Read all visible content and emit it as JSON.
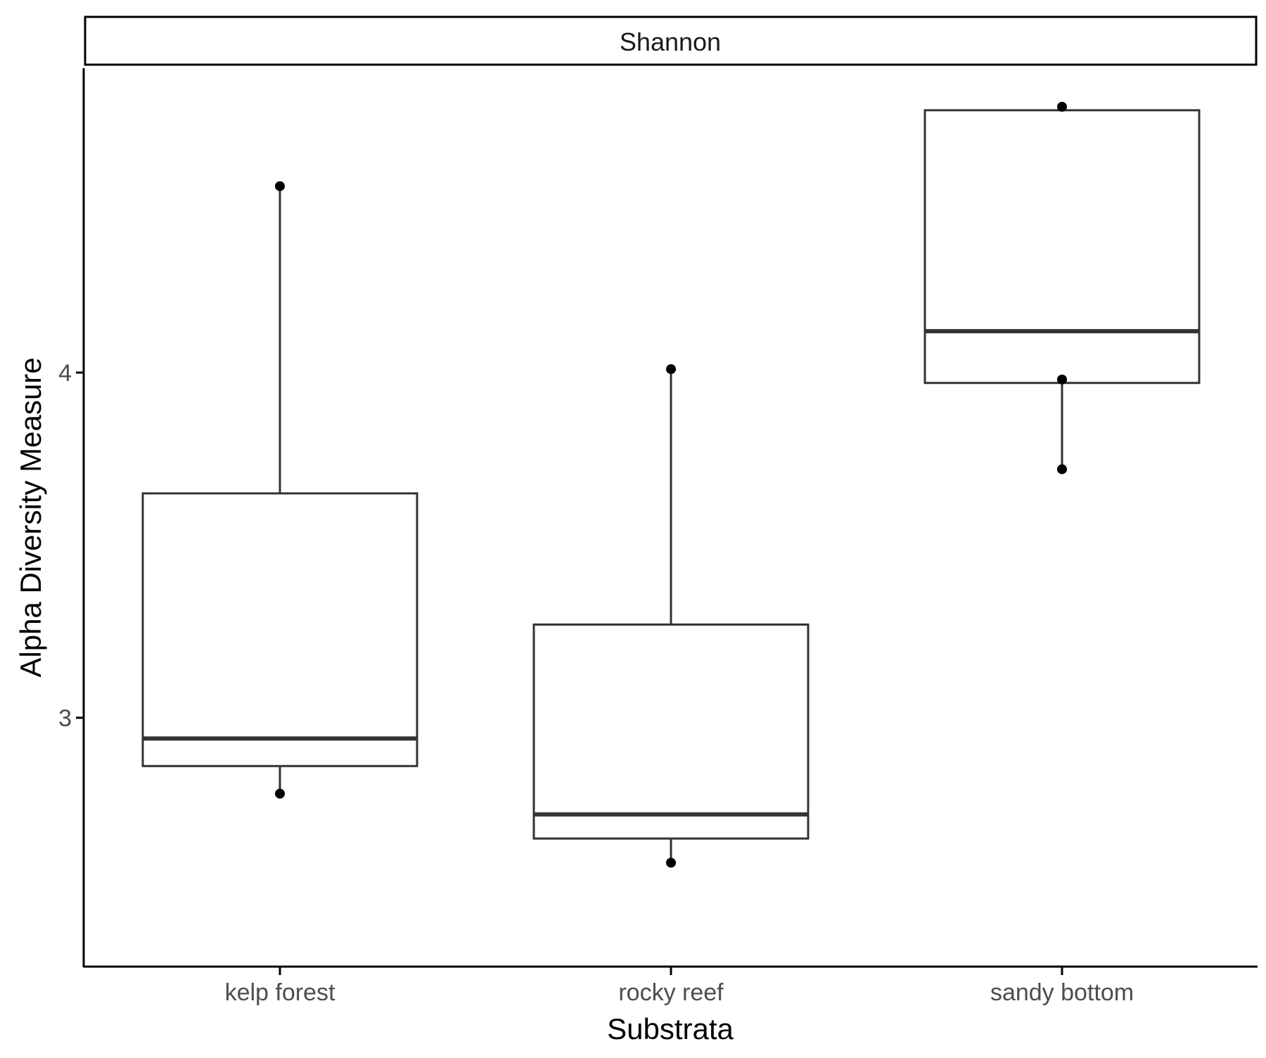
{
  "chart_data": {
    "type": "box",
    "facet_label": "Shannon",
    "xlabel": "Substrata",
    "ylabel": "Alpha Diversity Measure",
    "categories": [
      "kelp forest",
      "rocky reef",
      "sandy bottom"
    ],
    "y_ticks": [
      {
        "value": 3,
        "label": "3"
      },
      {
        "value": 4,
        "label": "4"
      }
    ],
    "ylim": [
      2.28,
      4.88
    ],
    "grid": false,
    "boxes": [
      {
        "category": "kelp forest",
        "whisker_low": 2.78,
        "q1": 2.86,
        "median": 2.94,
        "q3": 3.65,
        "whisker_high": 4.54
      },
      {
        "category": "rocky reef",
        "whisker_low": 2.58,
        "q1": 2.65,
        "median": 2.72,
        "q3": 3.27,
        "whisker_high": 4.01
      },
      {
        "category": "sandy bottom",
        "whisker_low": 3.72,
        "q1": 3.97,
        "median": 4.12,
        "q3": 4.76,
        "whisker_high": 4.77
      }
    ],
    "points": [
      {
        "category": "kelp forest",
        "y": 4.54
      },
      {
        "category": "kelp forest",
        "y": 2.78
      },
      {
        "category": "rocky reef",
        "y": 4.01
      },
      {
        "category": "rocky reef",
        "y": 2.58
      },
      {
        "category": "sandy bottom",
        "y": 4.77
      },
      {
        "category": "sandy bottom",
        "y": 3.98
      },
      {
        "category": "sandy bottom",
        "y": 3.72
      }
    ],
    "colors": {
      "box_line": "#333333",
      "point": "#000000",
      "axis": "#000000",
      "tick_text": "#4d4d4d"
    }
  }
}
